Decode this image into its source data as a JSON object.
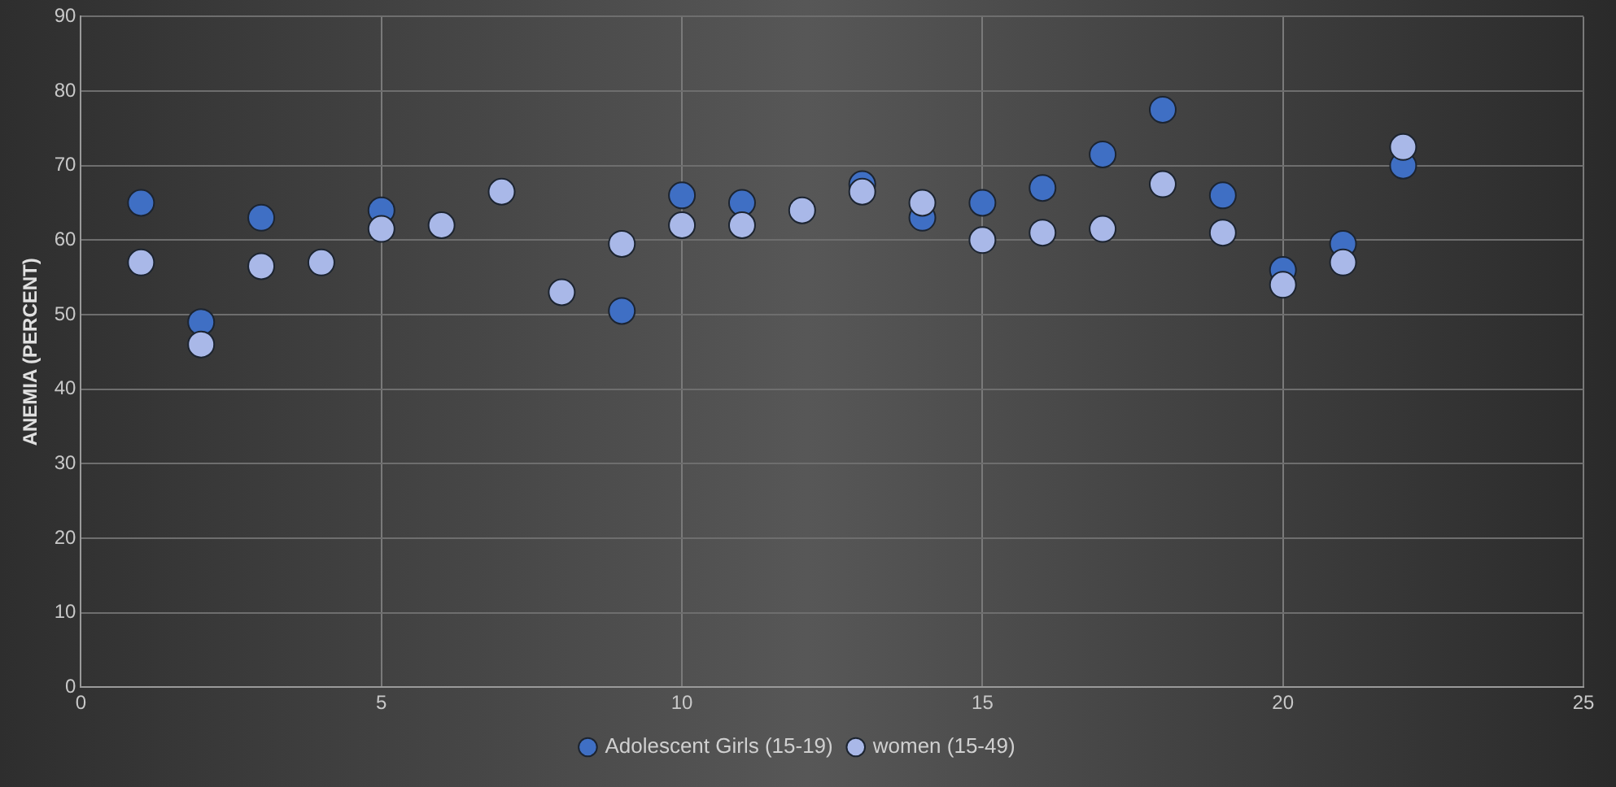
{
  "chart_data": {
    "type": "scatter",
    "ylabel": "ANEMIA (PERCENT)",
    "x": [
      1,
      2,
      3,
      4,
      5,
      6,
      7,
      8,
      9,
      10,
      11,
      12,
      13,
      14,
      15,
      16,
      17,
      18,
      19,
      20,
      21,
      22
    ],
    "series": [
      {
        "name": "Adolescent Girls (15-19)",
        "color": "#3f6fc4",
        "values": [
          65,
          49,
          63,
          null,
          64,
          null,
          null,
          null,
          50.5,
          66,
          65,
          null,
          67.5,
          63,
          65,
          67,
          71.5,
          77.5,
          66,
          56,
          59.5,
          70
        ]
      },
      {
        "name": "women (15-49)",
        "color": "#a9b8e8",
        "values": [
          57,
          46,
          56.5,
          57,
          61.5,
          62,
          66.5,
          53,
          59.5,
          62,
          62,
          64,
          66.5,
          65,
          60,
          61,
          61.5,
          67.5,
          61,
          54,
          57,
          72.5
        ]
      }
    ],
    "xlim": [
      0,
      25
    ],
    "xticks": [
      0,
      5,
      10,
      15,
      20,
      25
    ],
    "ylim": [
      0,
      90
    ],
    "yticks": [
      0,
      10,
      20,
      30,
      40,
      50,
      60,
      70,
      80,
      90
    ],
    "grid": true,
    "legend": "bottom",
    "marker": "circle"
  }
}
